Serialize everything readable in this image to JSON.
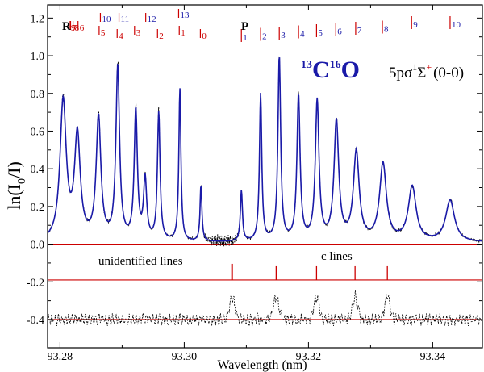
{
  "chart_data": {
    "type": "line",
    "title": "",
    "xlabel": "Wavelength (nm)",
    "ylabel_main": "ln(I",
    "ylabel_sub": "0",
    "ylabel_end": "/I)",
    "xlim": [
      93.278,
      93.348
    ],
    "ylim": [
      -0.55,
      1.27
    ],
    "x_ticks": [
      93.28,
      93.3,
      93.32,
      93.34
    ],
    "x_tick_labels": [
      "93.28",
      "93.30",
      "93.32",
      "93.34"
    ],
    "y_ticks": [
      -0.4,
      -0.2,
      0.0,
      0.2,
      0.4,
      0.6,
      0.8,
      1.0,
      1.2
    ],
    "y_tick_labels": [
      "-0.4",
      "-0.2",
      "0.0",
      "0.2",
      "0.4",
      "0.6",
      "0.8",
      "1.0",
      "1.2"
    ],
    "molecule": {
      "mass_c": "13",
      "element_c": "C",
      "mass_o": "16",
      "element_o": "O"
    },
    "state": {
      "label": "5pσ",
      "mult": "1",
      "sym": "Σ",
      "plus": "+",
      "band": "(0-0)"
    },
    "branches": {
      "R": "R",
      "P": "P"
    },
    "assignments_R_red": [
      {
        "j": "9",
        "x": 93.2815
      },
      {
        "j": "7",
        "x": 93.2817
      },
      {
        "j": "8",
        "x": 93.2821
      },
      {
        "j": "6",
        "x": 93.2829
      },
      {
        "j": "5",
        "x": 93.2863
      },
      {
        "j": "4",
        "x": 93.2892
      },
      {
        "j": "3",
        "x": 93.292
      },
      {
        "j": "2",
        "x": 93.2957
      },
      {
        "j": "1",
        "x": 93.2992
      },
      {
        "j": "0",
        "x": 93.3026
      }
    ],
    "assignments_R_blue": [
      {
        "j": "10",
        "x": 93.2865
      },
      {
        "j": "11",
        "x": 93.2895
      },
      {
        "j": "12",
        "x": 93.2938
      },
      {
        "j": "13",
        "x": 93.2991
      }
    ],
    "assignments_P": [
      {
        "j": "1",
        "x": 93.3092
      },
      {
        "j": "2",
        "x": 93.3123
      },
      {
        "j": "3",
        "x": 93.3153
      },
      {
        "j": "4",
        "x": 93.3184
      },
      {
        "j": "5",
        "x": 93.3213
      },
      {
        "j": "6",
        "x": 93.3244
      },
      {
        "j": "7",
        "x": 93.3276
      },
      {
        "j": "8",
        "x": 93.3319
      },
      {
        "j": "9",
        "x": 93.3366
      },
      {
        "j": "10",
        "x": 93.3428
      }
    ],
    "simulated_peaks": [
      {
        "x": 93.2805,
        "amp": 0.74,
        "w": 0.0006
      },
      {
        "x": 93.2828,
        "amp": 0.55,
        "w": 0.00055
      },
      {
        "x": 93.2862,
        "amp": 0.65,
        "w": 0.00045
      },
      {
        "x": 93.2893,
        "amp": 0.92,
        "w": 0.00035
      },
      {
        "x": 93.2922,
        "amp": 0.69,
        "w": 0.0003
      },
      {
        "x": 93.2937,
        "amp": 0.32,
        "w": 0.0003
      },
      {
        "x": 93.2959,
        "amp": 0.68,
        "w": 0.00025
      },
      {
        "x": 93.2993,
        "amp": 0.81,
        "w": 0.0002
      },
      {
        "x": 93.3027,
        "amp": 0.3,
        "w": 0.00018
      },
      {
        "x": 93.3092,
        "amp": 0.27,
        "w": 0.0002
      },
      {
        "x": 93.3123,
        "amp": 0.78,
        "w": 0.00022
      },
      {
        "x": 93.3153,
        "amp": 0.98,
        "w": 0.00026
      },
      {
        "x": 93.3184,
        "amp": 0.77,
        "w": 0.0003
      },
      {
        "x": 93.3214,
        "amp": 0.74,
        "w": 0.00035
      },
      {
        "x": 93.3245,
        "amp": 0.63,
        "w": 0.00045
      },
      {
        "x": 93.3277,
        "amp": 0.47,
        "w": 0.00055
      },
      {
        "x": 93.332,
        "amp": 0.41,
        "w": 0.00065
      },
      {
        "x": 93.3367,
        "amp": 0.29,
        "w": 0.00075
      },
      {
        "x": 93.3428,
        "amp": 0.22,
        "w": 0.00085
      }
    ],
    "zero_line": 0.0,
    "c_line_level": -0.19,
    "residual_level": -0.4,
    "c_lines_x": [
      93.3077,
      93.3148,
      93.3213,
      93.3275,
      93.3327
    ],
    "annotation_unidentified": "unidentified lines",
    "annotation_c_lines": "c lines",
    "colors": {
      "simulated": "#1a1aa8",
      "reference_lines": "#cc0000",
      "experiment": "#000000"
    }
  }
}
